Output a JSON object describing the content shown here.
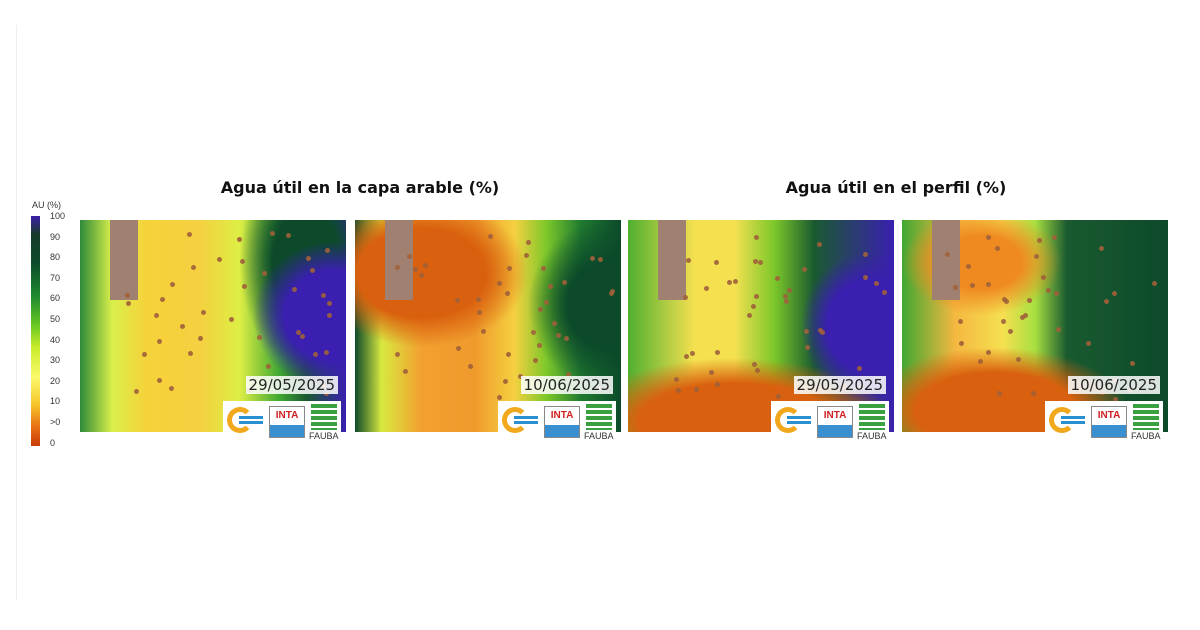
{
  "legend": {
    "title": "AU (%)",
    "ticks": [
      "100",
      "90",
      "80",
      "70",
      "60",
      "50",
      "40",
      "30",
      "20",
      "10",
      ">0",
      "0"
    ]
  },
  "titles": {
    "capa_arable": "Agua útil en la capa arable (%)",
    "perfil": "Agua útil en el perfil (%)"
  },
  "panels": [
    {
      "date": "29/05/2025",
      "variable": "capa arable"
    },
    {
      "date": "10/06/2025",
      "variable": "capa arable"
    },
    {
      "date": "29/05/2025",
      "variable": "perfil"
    },
    {
      "date": "10/06/2025",
      "variable": "perfil"
    }
  ],
  "logos": {
    "inta": "INTA",
    "fauba": "FAUBA"
  }
}
